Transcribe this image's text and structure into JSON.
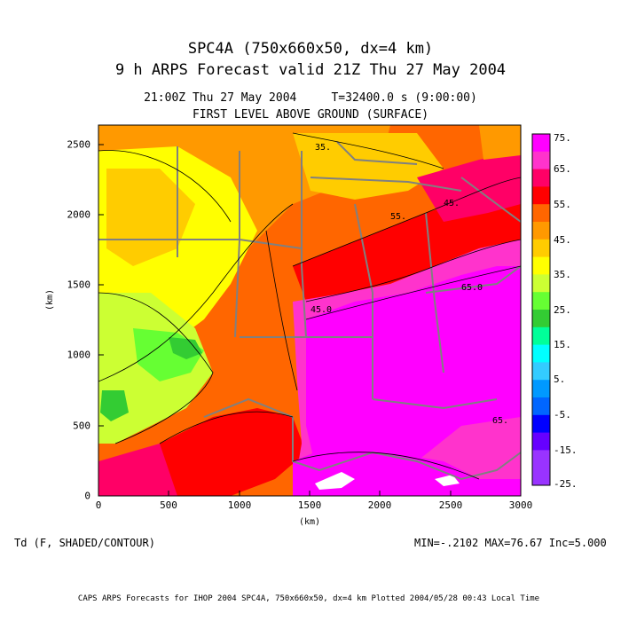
{
  "header": {
    "title_line1": "SPC4A (750x660x50, dx=4 km)",
    "title_line2": "9 h ARPS Forecast valid 21Z Thu 27 May 2004",
    "time_line": "21:00Z Thu 27 May 2004     T=32400.0 s (9:00:00)",
    "level_line": "FIRST LEVEL ABOVE GROUND (SURFACE)"
  },
  "axes": {
    "xlabel": "(km)",
    "ylabel": "(km)",
    "x_ticks": [
      "0",
      "500",
      "1000",
      "1500",
      "2000",
      "2500",
      "3000"
    ],
    "y_ticks": [
      "0",
      "500",
      "1000",
      "1500",
      "2000",
      "2500"
    ],
    "x_range": [
      0,
      3000
    ],
    "y_range": [
      0,
      2640
    ]
  },
  "colorbar": {
    "labels": [
      "75.",
      "65.",
      "55.",
      "45.",
      "35.",
      "25.",
      "15.",
      "5.",
      "-5.",
      "-15.",
      "-25."
    ],
    "colors": [
      "#ff00ff",
      "#ff33cc",
      "#ff0066",
      "#ff0000",
      "#ff6600",
      "#ff9900",
      "#ffcc00",
      "#ffff00",
      "#ccff33",
      "#66ff33",
      "#33cc33",
      "#00ff99",
      "#00ffff",
      "#33ccff",
      "#0099ff",
      "#0066ff",
      "#0000ff",
      "#6600ff",
      "#9933ff",
      "#9933ff"
    ]
  },
  "footer": {
    "variable": "Td (F, SHADED/CONTOUR)",
    "stats": "MIN=-.2102 MAX=76.67 Inc=5.000",
    "credit": "CAPS ARPS Forecasts for IHOP 2004  SPC4A, 750x660x50, dx=4 km  Plotted 2004/05/28 00:43 Local Time"
  },
  "contour_labels": [
    "35.",
    "45.",
    "55.",
    "65.",
    "45.0",
    "65.0"
  ]
}
